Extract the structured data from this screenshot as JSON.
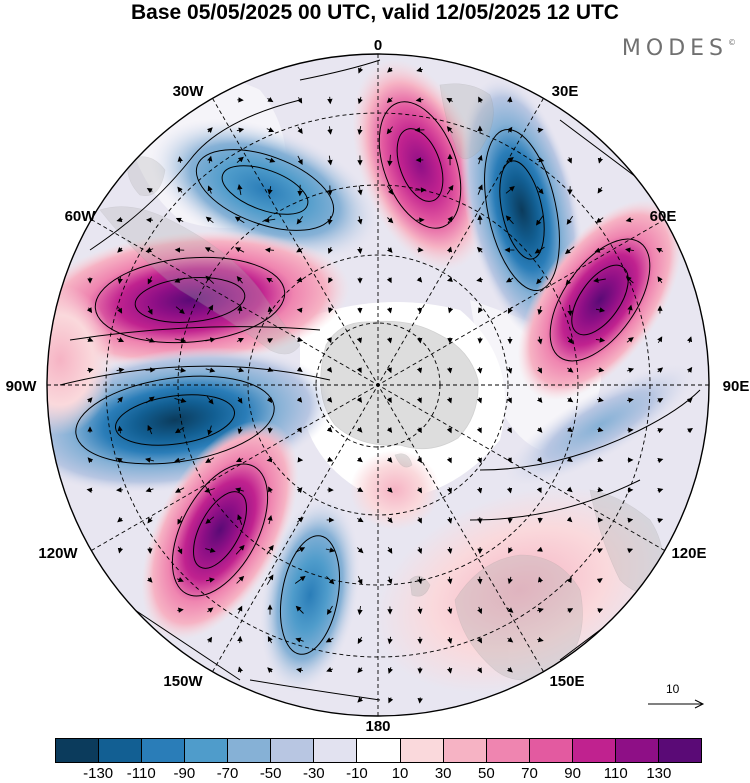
{
  "title": "Base 05/05/2025 00 UTC, valid 12/05/2025 12 UTC",
  "brand": "MODES",
  "brand_mark": "©",
  "longitude_labels": {
    "lon_0": "0",
    "lon_30e": "30E",
    "lon_60e": "60E",
    "lon_90e": "90E",
    "lon_120e": "120E",
    "lon_150e": "150E",
    "lon_180": "180",
    "lon_150w": "150W",
    "lon_120w": "120W",
    "lon_90w": "90W",
    "lon_60w": "60W",
    "lon_30w": "30W"
  },
  "wind_reference": {
    "label": "10",
    "value": 10
  },
  "colorbar": {
    "colors": [
      "#0b3b5c",
      "#125f93",
      "#2a7db8",
      "#4f9ccb",
      "#86b1d6",
      "#b8c6e2",
      "#e2e2f0",
      "#ffffff",
      "#fad9dc",
      "#f6b3c4",
      "#ef85b0",
      "#e35aa0",
      "#c0228f",
      "#8e0f86",
      "#5a0a76"
    ],
    "tick_labels": [
      "-130",
      "-110",
      "-90",
      "-70",
      "-50",
      "-30",
      "-10",
      "10",
      "30",
      "50",
      "70",
      "90",
      "110",
      "130"
    ]
  },
  "anomaly_features": [
    {
      "name": "negative-centre-30w",
      "sign": "negative",
      "level": -90
    },
    {
      "name": "positive-centre-15e",
      "sign": "positive",
      "level": 110
    },
    {
      "name": "negative-centre-35e",
      "sign": "negative",
      "level": -130
    },
    {
      "name": "positive-centre-65e",
      "sign": "positive",
      "level": 110
    },
    {
      "name": "positive-centre-60w",
      "sign": "positive",
      "level": 130
    },
    {
      "name": "negative-centre-90w",
      "sign": "negative",
      "level": -130
    },
    {
      "name": "positive-centre-130w",
      "sign": "positive",
      "level": 110
    },
    {
      "name": "negative-centre-160w",
      "sign": "negative",
      "level": -90
    },
    {
      "name": "negative-band-100e",
      "sign": "negative",
      "level": -50
    },
    {
      "name": "positive-patch-150e",
      "sign": "positive",
      "level": 30
    }
  ]
}
